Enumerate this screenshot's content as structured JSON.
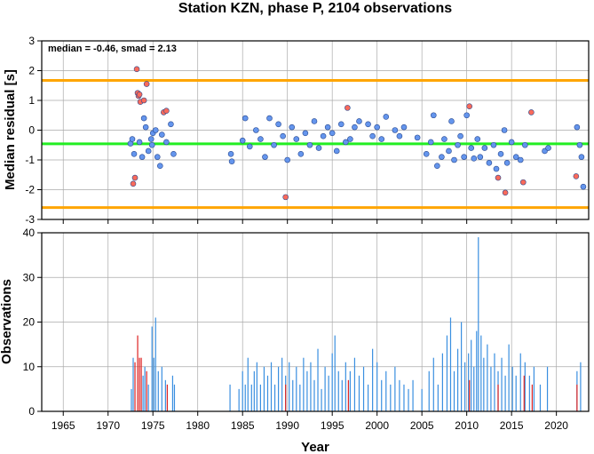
{
  "chart_data": [
    {
      "type": "scatter",
      "title": "Station KZN, phase P, 2104 observations",
      "ylabel": "Median residual [s]",
      "annotation": "median = -0.46, smad = 2.13",
      "xlim": [
        1962.6,
        2023.6
      ],
      "ylim": [
        -3,
        3
      ],
      "yticks": [
        -3,
        -2,
        -1,
        0,
        1,
        2,
        3
      ],
      "xticks": [
        1965,
        1970,
        1975,
        1980,
        1985,
        1990,
        1995,
        2000,
        2005,
        2010,
        2015,
        2020
      ],
      "grid": true,
      "reference_lines": [
        {
          "value": -0.46,
          "color": "#22ee22"
        },
        {
          "value": 1.67,
          "color": "#ffa500"
        },
        {
          "value": -2.6,
          "color": "#ffa500"
        }
      ],
      "series": [
        {
          "color": "#6495ed",
          "x": [
            1972.5,
            1972.7,
            1972.9,
            1973.5,
            1974.0,
            1974.2,
            1974.5,
            1974.8,
            1975.0,
            1975.3,
            1975.5,
            1975.8,
            1976.0,
            1976.5,
            1977.0,
            1977.3,
            1973.8,
            1974.9,
            1983.7,
            1983.8,
            1985.0,
            1985.3,
            1985.8,
            1986.5,
            1987.0,
            1987.5,
            1988.0,
            1988.5,
            1989.0,
            1989.5,
            1990.0,
            1990.5,
            1991.0,
            1991.5,
            1992.0,
            1992.5,
            1993.0,
            1993.5,
            1994.0,
            1994.5,
            1995.0,
            1995.5,
            1996.0,
            1996.5,
            1997.0,
            1997.5,
            1998.0,
            1999.0,
            1999.5,
            2000.0,
            2000.5,
            2001.0,
            2002.0,
            2002.5,
            2003.0,
            2004.5,
            2005.5,
            2006.0,
            2006.3,
            2006.7,
            2007.2,
            2007.5,
            2008.0,
            2008.3,
            2008.6,
            2009.0,
            2009.3,
            2009.7,
            2010.0,
            2010.5,
            2010.8,
            2011.2,
            2011.5,
            2012.0,
            2012.5,
            2013.0,
            2013.3,
            2013.8,
            2014.2,
            2014.5,
            2015.0,
            2015.5,
            2016.0,
            2016.5,
            2018.7,
            2019.1,
            2022.3,
            2022.6,
            2022.8,
            2023.0
          ],
          "values": [
            -0.45,
            -0.3,
            -0.8,
            -0.4,
            0.4,
            0.1,
            -0.7,
            -0.3,
            -0.1,
            0.0,
            -0.9,
            -1.2,
            -0.15,
            -0.4,
            0.2,
            -0.8,
            -0.9,
            -0.5,
            -0.8,
            -1.05,
            -0.35,
            0.4,
            -0.55,
            0.0,
            -0.3,
            -0.9,
            0.4,
            -0.5,
            0.2,
            -0.2,
            -1.0,
            0.1,
            -0.3,
            -0.8,
            -0.1,
            -0.5,
            0.3,
            -0.6,
            -0.2,
            0.1,
            -0.1,
            -0.7,
            0.2,
            -0.4,
            -0.3,
            0.1,
            0.3,
            0.2,
            -0.2,
            0.1,
            -0.3,
            0.45,
            0.0,
            -0.2,
            0.1,
            -0.25,
            -0.8,
            -0.4,
            0.5,
            -1.2,
            -0.9,
            -0.3,
            -0.7,
            0.3,
            -1.0,
            -0.5,
            -0.2,
            -0.9,
            0.5,
            -0.6,
            -0.95,
            -0.3,
            -0.9,
            -0.6,
            -1.1,
            -0.5,
            -1.3,
            -0.8,
            0.0,
            -1.1,
            -0.4,
            -0.9,
            -1.0,
            -0.5,
            -0.7,
            -0.6,
            0.1,
            -0.5,
            -0.9,
            -1.9
          ]
        },
        {
          "color": "#fa6a5a",
          "x": [
            1973.2,
            1973.3,
            1973.4,
            1973.5,
            1973.6,
            1974.0,
            1974.3,
            1973.0,
            1972.8,
            1976.2,
            1976.5,
            1989.8,
            1996.7,
            2010.3,
            2013.5,
            2014.3,
            2016.3,
            2017.2,
            2022.2
          ],
          "values": [
            2.05,
            1.25,
            1.15,
            1.2,
            0.95,
            1.0,
            1.55,
            -1.6,
            -1.8,
            0.6,
            0.65,
            -2.25,
            0.75,
            0.8,
            -1.6,
            -2.1,
            -1.75,
            0.6,
            -1.55
          ]
        }
      ]
    },
    {
      "type": "bar",
      "xlabel": "Year",
      "ylabel": "Observations",
      "xlim": [
        1962.6,
        2023.6
      ],
      "ylim": [
        0,
        40
      ],
      "yticks": [
        0,
        10,
        20,
        30,
        40
      ],
      "xticks": [
        1965,
        1970,
        1975,
        1980,
        1985,
        1990,
        1995,
        2000,
        2005,
        2010,
        2015,
        2020
      ],
      "grid": true,
      "series": [
        {
          "color": "#3a8fe0",
          "x": [
            1972.6,
            1972.8,
            1973.9,
            1974.1,
            1974.5,
            1974.9,
            1975.1,
            1975.3,
            1975.6,
            1976.0,
            1976.4,
            1977.2,
            1977.4,
            1983.6,
            1984.6,
            1985.0,
            1985.3,
            1985.6,
            1986.0,
            1986.3,
            1986.6,
            1987.0,
            1987.4,
            1987.8,
            1988.2,
            1988.6,
            1989.0,
            1989.4,
            1989.8,
            1990.2,
            1990.6,
            1991.0,
            1991.4,
            1991.8,
            1992.2,
            1992.6,
            1993.0,
            1993.4,
            1993.8,
            1994.2,
            1994.6,
            1995.0,
            1995.3,
            1995.7,
            1996.1,
            1996.5,
            1997.0,
            1997.5,
            1998.0,
            1998.5,
            1999.0,
            1999.5,
            2000.0,
            2000.5,
            2001.0,
            2001.5,
            2002.0,
            2002.5,
            2003.0,
            2003.5,
            2004.0,
            2005.0,
            2005.8,
            2006.3,
            2006.8,
            2007.3,
            2007.8,
            2008.2,
            2008.6,
            2009.0,
            2009.4,
            2009.8,
            2010.2,
            2010.5,
            2010.8,
            2011.1,
            2011.3,
            2011.6,
            2011.9,
            2012.3,
            2012.7,
            2013.1,
            2013.5,
            2013.9,
            2014.3,
            2014.7,
            2015.1,
            2015.5,
            2016.0,
            2016.5,
            2017.0,
            2017.5,
            2018.2,
            2019.0,
            2022.3,
            2022.7
          ],
          "values": [
            5,
            12,
            8,
            10,
            6,
            19,
            12,
            21,
            9,
            10,
            7,
            8,
            6,
            6,
            5,
            9,
            6,
            12,
            6,
            9,
            11,
            6,
            10,
            8,
            11,
            6,
            10,
            12,
            8,
            11,
            7,
            10,
            6,
            12,
            9,
            11,
            7,
            14,
            5,
            10,
            8,
            13,
            17,
            9,
            7,
            11,
            9,
            12,
            8,
            10,
            6,
            14,
            11,
            7,
            9,
            6,
            10,
            7,
            6,
            5,
            7,
            5,
            9,
            12,
            6,
            13,
            17,
            21,
            9,
            14,
            20,
            11,
            13,
            16,
            10,
            18,
            39,
            17,
            12,
            15,
            10,
            13,
            9,
            12,
            8,
            15,
            10,
            8,
            13,
            11,
            8,
            10,
            6,
            10,
            9,
            11
          ]
        },
        {
          "color": "#dd2222",
          "x": [
            1973.0,
            1973.3,
            1973.5,
            1973.7,
            1974.3,
            1976.6,
            1989.8,
            1996.8,
            2010.3,
            2013.5,
            2016.4,
            2017.3,
            2022.3
          ],
          "values": [
            11,
            17,
            12,
            12,
            9,
            6,
            6,
            7,
            7,
            6,
            8,
            6,
            6
          ]
        }
      ]
    }
  ]
}
